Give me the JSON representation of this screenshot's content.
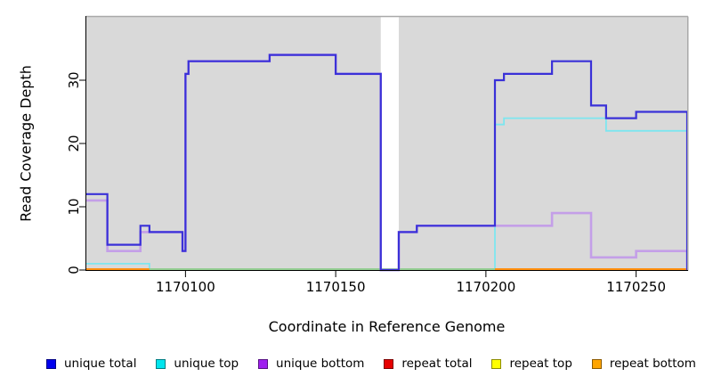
{
  "chart_data": {
    "type": "line",
    "subtype": "step-coverage-plot",
    "title": "",
    "xlabel": "Coordinate in Reference Genome",
    "ylabel": "Read Coverage Depth",
    "xlim": [
      1170067,
      1170267
    ],
    "ylim": [
      0,
      40
    ],
    "grid": false,
    "legend_position": "bottom",
    "background": "#d9d9d9",
    "xticks": [
      {
        "coord": 1170100,
        "label": "1170100"
      },
      {
        "coord": 1170150,
        "label": "1170150"
      },
      {
        "coord": 1170200,
        "label": "1170200"
      },
      {
        "coord": 1170250,
        "label": "1170250"
      }
    ],
    "yticks": [
      {
        "value": 0,
        "label": "0"
      },
      {
        "value": 10,
        "label": "10"
      },
      {
        "value": 20,
        "label": "20"
      },
      {
        "value": 30,
        "label": "30"
      }
    ],
    "gap_band": {
      "x1": 1170165,
      "x2": 1170171,
      "color": "#ffffff",
      "note": "white no-data band"
    },
    "baseline_segments": [
      {
        "x1": 1170067,
        "x2": 1170088,
        "value": 0,
        "color": "#ff8f0e",
        "name": "repeat-bottom-zero-left"
      },
      {
        "x1": 1170088,
        "x2": 1170203,
        "value": 0,
        "color": "#94ce92",
        "name": "zero-line-green"
      },
      {
        "x1": 1170203,
        "x2": 1170267,
        "value": 0,
        "color": "#ff8f0e",
        "name": "repeat-bottom-zero-right"
      }
    ],
    "series": [
      {
        "name": "unique top",
        "color": "#7de6ef",
        "width": 1.8,
        "points": [
          [
            1170067,
            1
          ],
          [
            1170088,
            0
          ],
          [
            1170203,
            23
          ],
          [
            1170206,
            24
          ],
          [
            1170240,
            22
          ]
        ],
        "xend": 1170267
      },
      {
        "name": "unique bottom",
        "color": "#c49fe8",
        "width": 2.6,
        "points": [
          [
            1170067,
            11
          ],
          [
            1170074,
            3
          ],
          [
            1170085,
            6
          ],
          [
            1170099,
            3
          ],
          [
            1170100,
            31
          ],
          [
            1170101,
            33
          ],
          [
            1170128,
            34
          ],
          [
            1170150,
            31
          ],
          [
            1170165,
            0
          ],
          [
            1170171,
            6
          ],
          [
            1170177,
            7
          ],
          [
            1170222,
            9
          ],
          [
            1170235,
            2
          ],
          [
            1170250,
            3
          ]
        ],
        "xend": 1170267
      },
      {
        "name": "unique total",
        "color": "#3a31d8",
        "width": 2.2,
        "points": [
          [
            1170067,
            12
          ],
          [
            1170074,
            4
          ],
          [
            1170085,
            7
          ],
          [
            1170088,
            6
          ],
          [
            1170099,
            3
          ],
          [
            1170100,
            31
          ],
          [
            1170101,
            33
          ],
          [
            1170128,
            34
          ],
          [
            1170150,
            31
          ],
          [
            1170165,
            0
          ],
          [
            1170171,
            6
          ],
          [
            1170177,
            7
          ],
          [
            1170203,
            30
          ],
          [
            1170206,
            31
          ],
          [
            1170222,
            33
          ],
          [
            1170235,
            26
          ],
          [
            1170240,
            24
          ],
          [
            1170250,
            25
          ]
        ],
        "xend": 1170267
      }
    ],
    "legend": [
      {
        "label": "unique total",
        "color": "#0000ee"
      },
      {
        "label": "unique top",
        "color": "#00e5ee"
      },
      {
        "label": "unique bottom",
        "color": "#a020f0"
      },
      {
        "label": "repeat total",
        "color": "#e60000"
      },
      {
        "label": "repeat top",
        "color": "#ffff00"
      },
      {
        "label": "repeat bottom",
        "color": "#ffa500"
      }
    ]
  }
}
